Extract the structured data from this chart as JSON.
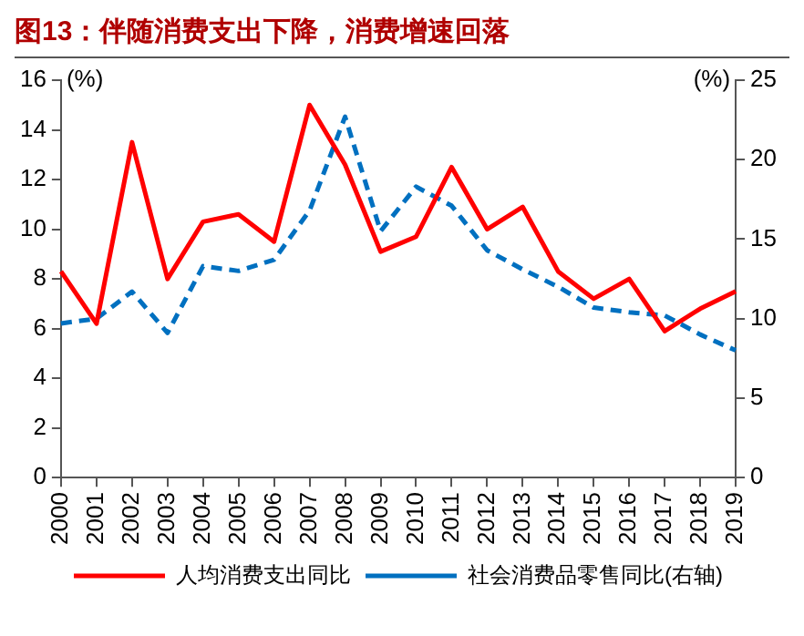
{
  "chart_data": {
    "type": "line",
    "title": "图13：伴随消费支出下降，消费增速回落",
    "categories": [
      "2000",
      "2001",
      "2002",
      "2003",
      "2004",
      "2005",
      "2006",
      "2007",
      "2008",
      "2009",
      "2010",
      "2011",
      "2012",
      "2013",
      "2014",
      "2015",
      "2016",
      "2017",
      "2018",
      "2019"
    ],
    "series": [
      {
        "name": "人均消费支出同比",
        "color": "#ff0000",
        "line_style": "solid",
        "values": [
          8.3,
          6.2,
          13.5,
          8.0,
          10.3,
          10.6,
          9.5,
          15.0,
          12.6,
          9.1,
          9.7,
          12.5,
          10.0,
          10.9,
          8.3,
          7.2,
          8.0,
          5.9,
          6.8,
          7.5
        ]
      },
      {
        "name": "社会消费品零售同比(右轴)",
        "color": "#0070c0",
        "line_style": "dashed",
        "axis": "y2",
        "values": [
          9.7,
          10.0,
          11.7,
          9.1,
          13.3,
          13.0,
          13.7,
          16.8,
          22.7,
          15.5,
          18.3,
          17.1,
          14.3,
          13.1,
          12.0,
          10.7,
          10.4,
          10.2,
          9.0,
          8.0
        ]
      }
    ],
    "ylabel": "(%)",
    "y2label": "(%)",
    "ylim": [
      0,
      16
    ],
    "yticks": [
      0,
      2,
      4,
      6,
      8,
      10,
      12,
      14,
      16
    ],
    "y2lim": [
      0,
      25
    ],
    "y2ticks": [
      0,
      5,
      10,
      15,
      20,
      25
    ],
    "grid": false,
    "legend": "bottom",
    "marker": "none"
  }
}
